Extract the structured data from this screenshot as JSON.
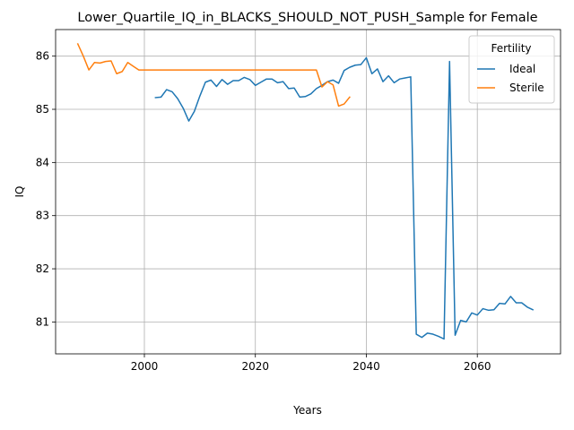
{
  "chart_data": {
    "type": "line",
    "title": "Lower_Quartile_IQ_in_BLACKS_SHOULD_NOT_PUSH_Sample for Female",
    "xlabel": "Years",
    "ylabel": "IQ",
    "xlim": [
      1984,
      2075
    ],
    "ylim": [
      80.4,
      86.5
    ],
    "xticks": [
      2000,
      2020,
      2040,
      2060
    ],
    "yticks": [
      81,
      82,
      83,
      84,
      85,
      86
    ],
    "grid": true,
    "legend": {
      "title": "Fertility",
      "position": "top-right"
    },
    "series": [
      {
        "name": "Ideal",
        "color": "#1f77b4",
        "x": [
          2002,
          2003,
          2004,
          2005,
          2006,
          2007,
          2008,
          2009,
          2010,
          2011,
          2012,
          2013,
          2014,
          2015,
          2016,
          2017,
          2018,
          2019,
          2020,
          2021,
          2022,
          2023,
          2024,
          2025,
          2026,
          2027,
          2028,
          2029,
          2030,
          2031,
          2032,
          2033,
          2034,
          2035,
          2036,
          2037,
          2038,
          2039,
          2040,
          2041,
          2042,
          2043,
          2044,
          2045,
          2046,
          2047,
          2048,
          2049,
          2050,
          2051,
          2052,
          2053,
          2054,
          2055,
          2056,
          2057,
          2058,
          2059,
          2060,
          2061,
          2062,
          2063,
          2064,
          2065,
          2066,
          2067,
          2068,
          2069,
          2070
        ],
        "y": [
          85.22,
          85.23,
          85.37,
          85.33,
          85.2,
          85.02,
          84.78,
          84.96,
          85.25,
          85.51,
          85.55,
          85.43,
          85.56,
          85.47,
          85.54,
          85.54,
          85.6,
          85.56,
          85.45,
          85.51,
          85.57,
          85.57,
          85.5,
          85.52,
          85.39,
          85.4,
          85.23,
          85.24,
          85.29,
          85.39,
          85.45,
          85.52,
          85.55,
          85.49,
          85.73,
          85.79,
          85.83,
          85.84,
          85.97,
          85.67,
          85.76,
          85.52,
          85.63,
          85.5,
          85.57,
          85.59,
          85.61,
          80.77,
          80.71,
          80.79,
          80.77,
          80.73,
          80.68,
          85.9,
          80.75,
          81.03,
          81.0,
          81.17,
          81.13,
          81.25,
          81.22,
          81.23,
          81.35,
          81.34,
          81.48,
          81.36,
          81.36,
          81.28,
          81.23
        ]
      },
      {
        "name": "Sterile",
        "color": "#ff7f0e",
        "x": [
          1988,
          1989,
          1990,
          1991,
          1992,
          1993,
          1994,
          1995,
          1996,
          1997,
          1998,
          1999,
          2000,
          2031,
          2032,
          2033,
          2034,
          2035,
          2036,
          2037
        ],
        "y": [
          86.23,
          86.0,
          85.74,
          85.88,
          85.87,
          85.9,
          85.91,
          85.67,
          85.71,
          85.88,
          85.81,
          85.74,
          85.74,
          85.74,
          85.42,
          85.52,
          85.46,
          85.06,
          85.1,
          85.23
        ]
      }
    ]
  }
}
